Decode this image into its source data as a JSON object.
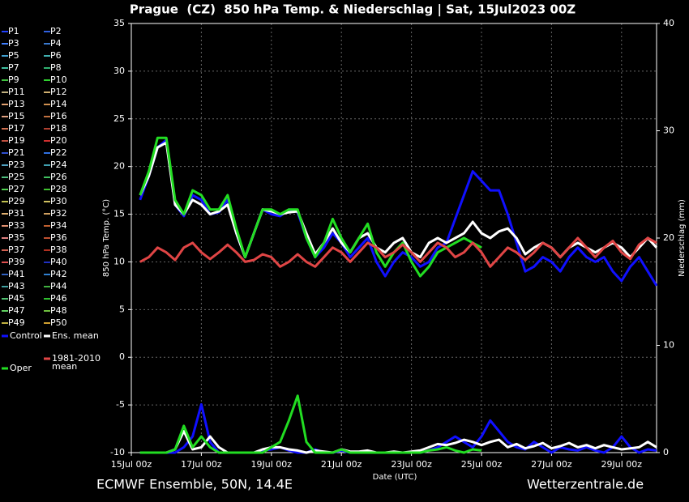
{
  "chart_data": {
    "type": "line",
    "title": "Prague  (CZ)  850 hPa Temp. & Niederschlag | Sat, 15Jul2023 00Z",
    "xlabel": "Date (UTC)",
    "ylabel": "850 hPa Temp. (°C)",
    "y2label": "Niederschlag (mm)",
    "footer_left": "ECMWF Ensemble, 50N, 14.4E",
    "footer_right": "Wetterzentrale.de",
    "x": [
      6,
      12,
      18,
      24,
      30,
      36,
      42,
      48,
      54,
      60,
      66,
      72,
      78,
      84,
      90,
      96,
      102,
      108,
      114,
      120,
      126,
      132,
      138,
      144,
      150,
      156,
      162,
      168,
      174,
      180,
      186,
      192,
      198,
      204,
      210,
      216,
      222,
      228,
      234,
      240,
      246,
      252,
      258,
      264,
      270,
      276,
      282,
      288,
      294,
      300,
      306,
      312,
      318,
      324,
      330,
      336,
      342,
      348,
      354,
      360
    ],
    "xlim": [
      0,
      360
    ],
    "xticks": [
      {
        "value": 0,
        "label": "15Jul 00z"
      },
      {
        "value": 48,
        "label": "17Jul 00z"
      },
      {
        "value": 96,
        "label": "19Jul 00z"
      },
      {
        "value": 144,
        "label": "21Jul 00z"
      },
      {
        "value": 192,
        "label": "23Jul 00z"
      },
      {
        "value": 240,
        "label": "25Jul 00z"
      },
      {
        "value": 288,
        "label": "27Jul 00z"
      },
      {
        "value": 336,
        "label": "29Jul 00z"
      }
    ],
    "ylim": [
      -10,
      35
    ],
    "yticks": [
      -10,
      -5,
      0,
      5,
      10,
      15,
      20,
      25,
      30,
      35
    ],
    "y2lim": [
      0,
      40
    ],
    "y2ticks": [
      0,
      10,
      20,
      30,
      40
    ],
    "grid": true,
    "members": [
      {
        "name": "P1",
        "color": "#2040ff"
      },
      {
        "name": "P2",
        "color": "#3060e0"
      },
      {
        "name": "P3",
        "color": "#4080ff"
      },
      {
        "name": "P4",
        "color": "#3a7ad0"
      },
      {
        "name": "P5",
        "color": "#40a0d0"
      },
      {
        "name": "P6",
        "color": "#40b0b0"
      },
      {
        "name": "P7",
        "color": "#40c0a0"
      },
      {
        "name": "P8",
        "color": "#30b070"
      },
      {
        "name": "P9",
        "color": "#40c040"
      },
      {
        "name": "P10",
        "color": "#30d030"
      },
      {
        "name": "P11",
        "color": "#c0b080"
      },
      {
        "name": "P12",
        "color": "#d0b070"
      },
      {
        "name": "P13",
        "color": "#e0a070"
      },
      {
        "name": "P14",
        "color": "#d09050"
      },
      {
        "name": "P15",
        "color": "#e0a080"
      },
      {
        "name": "P16",
        "color": "#c07040"
      },
      {
        "name": "P17",
        "color": "#d07050"
      },
      {
        "name": "P18",
        "color": "#b04030"
      },
      {
        "name": "P19",
        "color": "#c05040"
      },
      {
        "name": "P20",
        "color": "#d03030"
      },
      {
        "name": "P21",
        "color": "#3050d0"
      },
      {
        "name": "P22",
        "color": "#3070e0"
      },
      {
        "name": "P23",
        "color": "#50a0c0"
      },
      {
        "name": "P24",
        "color": "#40a0b0"
      },
      {
        "name": "P25",
        "color": "#50c080"
      },
      {
        "name": "P26",
        "color": "#40c060"
      },
      {
        "name": "P27",
        "color": "#50d050"
      },
      {
        "name": "P28",
        "color": "#40c030"
      },
      {
        "name": "P29",
        "color": "#c0c050"
      },
      {
        "name": "P30",
        "color": "#d0c060"
      },
      {
        "name": "P31",
        "color": "#e0b070"
      },
      {
        "name": "P32",
        "color": "#d0a060"
      },
      {
        "name": "P33",
        "color": "#e09070"
      },
      {
        "name": "P34",
        "color": "#c06030"
      },
      {
        "name": "P35",
        "color": "#e08080"
      },
      {
        "name": "P36",
        "color": "#c05030"
      },
      {
        "name": "P37",
        "color": "#d06050"
      },
      {
        "name": "P38",
        "color": "#b03020"
      },
      {
        "name": "P39",
        "color": "#e05050"
      },
      {
        "name": "P40",
        "color": "#2030c0"
      },
      {
        "name": "P41",
        "color": "#3060c0"
      },
      {
        "name": "P42",
        "color": "#3080d0"
      },
      {
        "name": "P43",
        "color": "#40a0a0"
      },
      {
        "name": "P44",
        "color": "#40b040"
      },
      {
        "name": "P45",
        "color": "#50c070"
      },
      {
        "name": "P46",
        "color": "#30c030"
      },
      {
        "name": "P47",
        "color": "#60d060"
      },
      {
        "name": "P48",
        "color": "#70c040"
      },
      {
        "name": "P49",
        "color": "#c0b040"
      },
      {
        "name": "P50",
        "color": "#d0a030"
      }
    ],
    "series": [
      {
        "name": "Control",
        "color": "#1010ff",
        "values": [
          16.5,
          19,
          22,
          22.8,
          16,
          14.8,
          17,
          16.5,
          15,
          15.2,
          16.5,
          13,
          10.5,
          13,
          15.5,
          15,
          14.8,
          15.5,
          15.2,
          12.5,
          10.5,
          11.5,
          13,
          12,
          10.5,
          11.5,
          12.5,
          10,
          8.5,
          10,
          11,
          10.5,
          9.5,
          10,
          11.5,
          12,
          14.5,
          17,
          19.5,
          18.5,
          17.5,
          17.5,
          15,
          12,
          9,
          9.5,
          10.5,
          10,
          9,
          10.5,
          11.5,
          10.5,
          10,
          10.5,
          9,
          8,
          9.5,
          10.5,
          9,
          7.5
        ]
      },
      {
        "name": "Ens. mean",
        "color": "#ffffff",
        "values": [
          17,
          19,
          22,
          22.5,
          16,
          15,
          16.5,
          16,
          15,
          15.3,
          16,
          13,
          10.5,
          13,
          15.5,
          15.3,
          15,
          15.2,
          15.3,
          13,
          10.8,
          12,
          13.5,
          12,
          11,
          12.5,
          13,
          11.5,
          11,
          12,
          12.5,
          11,
          10.5,
          12,
          12.5,
          12,
          12.5,
          13,
          14.2,
          13,
          12.5,
          13.2,
          13.5,
          12.5,
          10.8,
          11.5,
          12,
          11.5,
          10.5,
          11.5,
          12,
          11.5,
          11,
          11.5,
          12,
          11.5,
          10.5,
          11.5,
          12.5,
          11.5
        ]
      },
      {
        "name": "Oper",
        "color": "#22dd22",
        "values": [
          17,
          19.5,
          23,
          23,
          16.5,
          15,
          17.5,
          17,
          15.5,
          15.5,
          17,
          13.5,
          10.5,
          13,
          15.5,
          15.5,
          15,
          15.5,
          15.5,
          12.5,
          10.5,
          12,
          14.5,
          12.5,
          11,
          12.5,
          14,
          11,
          9.5,
          11,
          12,
          10,
          8.5,
          9.5,
          11,
          11.5,
          12,
          12.5,
          12,
          11.5,
          null,
          null,
          null,
          null,
          null,
          null,
          null,
          null,
          null,
          null,
          null,
          null,
          null,
          null,
          null,
          null,
          null,
          null,
          null,
          null
        ]
      },
      {
        "name": "1981-2010 mean",
        "color": "#e04545",
        "values": [
          10,
          10.5,
          11.5,
          11,
          10.2,
          11.5,
          12,
          11,
          10.3,
          11,
          11.8,
          11,
          10,
          10.2,
          10.8,
          10.5,
          9.5,
          10,
          10.8,
          10,
          9.5,
          10.5,
          11.5,
          11,
          10,
          11,
          12,
          11.5,
          10.5,
          11,
          11.8,
          11,
          10,
          11,
          12,
          11.5,
          10.5,
          11,
          12,
          11,
          9.5,
          10.5,
          11.5,
          11,
          10.2,
          11,
          12,
          11.5,
          10.5,
          11.5,
          12.5,
          11.5,
          10.5,
          11.5,
          12.2,
          11,
          10.3,
          11.8,
          12.5,
          12
        ]
      },
      {
        "color": "#1010ff",
        "axis": "y2",
        "values": [
          0,
          0,
          0,
          0,
          0,
          0.5,
          1.5,
          4.5,
          1,
          0,
          0,
          0,
          0,
          0,
          0.2,
          0.3,
          0.5,
          0.2,
          0,
          0,
          0.3,
          0,
          0,
          0.2,
          0,
          0,
          0,
          0,
          0,
          0,
          0,
          0,
          0,
          0.2,
          0.5,
          1,
          1.5,
          1,
          0.5,
          1.5,
          3,
          2,
          1,
          0.5,
          0.3,
          1,
          0.5,
          0,
          0.5,
          0.3,
          0.2,
          0.5,
          0.2,
          0,
          0.5,
          1.5,
          0.5,
          0,
          0.3,
          0.2
        ]
      },
      {
        "color": "#ffffff",
        "axis": "y2",
        "values": [
          0,
          0,
          0,
          0,
          0.3,
          2,
          0.3,
          0.5,
          1.5,
          0.5,
          0,
          0,
          0,
          0,
          0.3,
          0.5,
          0.5,
          0.3,
          0.2,
          0,
          0.2,
          0.1,
          0,
          0.3,
          0.1,
          0.1,
          0.2,
          0,
          0,
          0.1,
          0,
          0.1,
          0.2,
          0.5,
          0.8,
          0.7,
          0.9,
          1.2,
          1.0,
          0.7,
          1.0,
          1.2,
          0.5,
          0.8,
          0.4,
          0.6,
          0.9,
          0.4,
          0.6,
          0.9,
          0.5,
          0.7,
          0.4,
          0.7,
          0.5,
          0.3,
          0.4,
          0.5,
          1.0,
          0.5
        ]
      },
      {
        "color": "#22dd22",
        "axis": "y2",
        "values": [
          0,
          0,
          0,
          0,
          0.3,
          2.5,
          0.5,
          1.5,
          0.5,
          0,
          0,
          0,
          0,
          0,
          0,
          0.5,
          1,
          3,
          5.3,
          1,
          0,
          0,
          0,
          0.3,
          0,
          0,
          0,
          0,
          0,
          0,
          0,
          0,
          0,
          0.2,
          0.3,
          0.5,
          0.2,
          0,
          0.3,
          0.2,
          null,
          null,
          null,
          null,
          null,
          null,
          null,
          null,
          null,
          null,
          null,
          null,
          null,
          null,
          null,
          null,
          null,
          null,
          null,
          null
        ]
      }
    ]
  }
}
